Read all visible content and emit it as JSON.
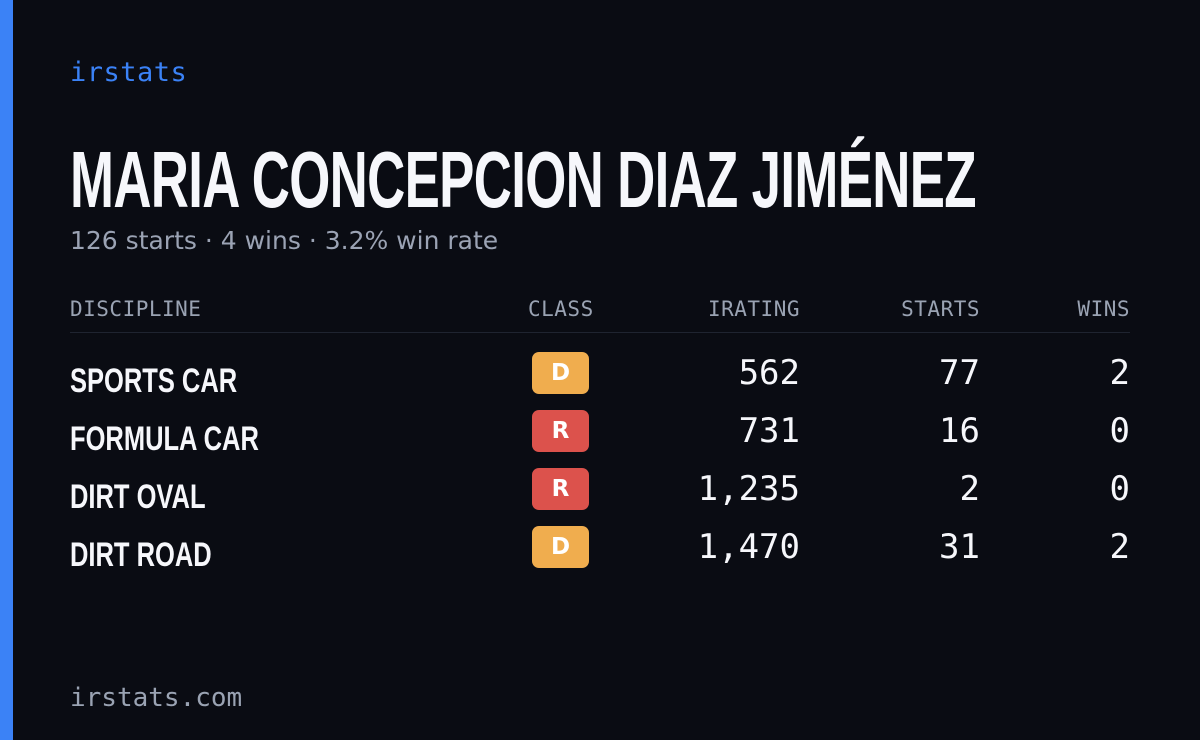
{
  "theme": {
    "accent": "#3b82f6",
    "class_colors": {
      "D": "#f0ad4e",
      "R": "#dc524c"
    }
  },
  "brand": "irstats",
  "driver": {
    "name": "MARIA CONCEPCION DIAZ JIMÉNEZ",
    "summary": "126 starts · 4 wins · 3.2% win rate"
  },
  "table": {
    "headers": {
      "discipline": "DISCIPLINE",
      "class": "CLASS",
      "irating": "IRATING",
      "starts": "STARTS",
      "wins": "WINS"
    },
    "rows": [
      {
        "discipline": "SPORTS CAR",
        "class": "D",
        "irating": "562",
        "starts": "77",
        "wins": "2"
      },
      {
        "discipline": "FORMULA CAR",
        "class": "R",
        "irating": "731",
        "starts": "16",
        "wins": "0"
      },
      {
        "discipline": "DIRT OVAL",
        "class": "R",
        "irating": "1,235",
        "starts": "2",
        "wins": "0"
      },
      {
        "discipline": "DIRT ROAD",
        "class": "D",
        "irating": "1,470",
        "starts": "31",
        "wins": "2"
      }
    ]
  },
  "footer": {
    "url": "irstats.com"
  }
}
